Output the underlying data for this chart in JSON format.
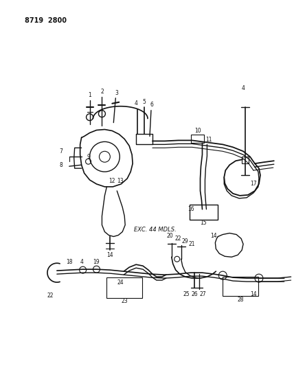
{
  "background_color": "#ffffff",
  "line_color": "#111111",
  "text_color": "#111111",
  "fig_width": 4.28,
  "fig_height": 5.33,
  "dpi": 100,
  "header_text": "8719  2800",
  "exc_label": "EXC. 44 MDLS."
}
